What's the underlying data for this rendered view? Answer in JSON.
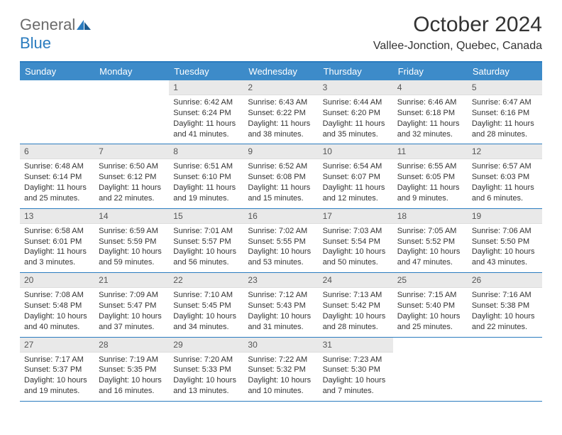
{
  "logo": {
    "text1": "General",
    "text2": "Blue",
    "color1": "#6b6b6b",
    "color2": "#2b7cbf"
  },
  "title": "October 2024",
  "location": "Vallee-Jonction, Quebec, Canada",
  "header_bg": "#3d8bc9",
  "header_rule": "#2b7cbf",
  "daynum_bg": "#e9e9e9",
  "text_color": "#333333",
  "font_size_detail": 11,
  "day_headers": [
    "Sunday",
    "Monday",
    "Tuesday",
    "Wednesday",
    "Thursday",
    "Friday",
    "Saturday"
  ],
  "weeks": [
    [
      null,
      null,
      {
        "n": "1",
        "sr": "Sunrise: 6:42 AM",
        "ss": "Sunset: 6:24 PM",
        "dl": "Daylight: 11 hours and 41 minutes."
      },
      {
        "n": "2",
        "sr": "Sunrise: 6:43 AM",
        "ss": "Sunset: 6:22 PM",
        "dl": "Daylight: 11 hours and 38 minutes."
      },
      {
        "n": "3",
        "sr": "Sunrise: 6:44 AM",
        "ss": "Sunset: 6:20 PM",
        "dl": "Daylight: 11 hours and 35 minutes."
      },
      {
        "n": "4",
        "sr": "Sunrise: 6:46 AM",
        "ss": "Sunset: 6:18 PM",
        "dl": "Daylight: 11 hours and 32 minutes."
      },
      {
        "n": "5",
        "sr": "Sunrise: 6:47 AM",
        "ss": "Sunset: 6:16 PM",
        "dl": "Daylight: 11 hours and 28 minutes."
      }
    ],
    [
      {
        "n": "6",
        "sr": "Sunrise: 6:48 AM",
        "ss": "Sunset: 6:14 PM",
        "dl": "Daylight: 11 hours and 25 minutes."
      },
      {
        "n": "7",
        "sr": "Sunrise: 6:50 AM",
        "ss": "Sunset: 6:12 PM",
        "dl": "Daylight: 11 hours and 22 minutes."
      },
      {
        "n": "8",
        "sr": "Sunrise: 6:51 AM",
        "ss": "Sunset: 6:10 PM",
        "dl": "Daylight: 11 hours and 19 minutes."
      },
      {
        "n": "9",
        "sr": "Sunrise: 6:52 AM",
        "ss": "Sunset: 6:08 PM",
        "dl": "Daylight: 11 hours and 15 minutes."
      },
      {
        "n": "10",
        "sr": "Sunrise: 6:54 AM",
        "ss": "Sunset: 6:07 PM",
        "dl": "Daylight: 11 hours and 12 minutes."
      },
      {
        "n": "11",
        "sr": "Sunrise: 6:55 AM",
        "ss": "Sunset: 6:05 PM",
        "dl": "Daylight: 11 hours and 9 minutes."
      },
      {
        "n": "12",
        "sr": "Sunrise: 6:57 AM",
        "ss": "Sunset: 6:03 PM",
        "dl": "Daylight: 11 hours and 6 minutes."
      }
    ],
    [
      {
        "n": "13",
        "sr": "Sunrise: 6:58 AM",
        "ss": "Sunset: 6:01 PM",
        "dl": "Daylight: 11 hours and 3 minutes."
      },
      {
        "n": "14",
        "sr": "Sunrise: 6:59 AM",
        "ss": "Sunset: 5:59 PM",
        "dl": "Daylight: 10 hours and 59 minutes."
      },
      {
        "n": "15",
        "sr": "Sunrise: 7:01 AM",
        "ss": "Sunset: 5:57 PM",
        "dl": "Daylight: 10 hours and 56 minutes."
      },
      {
        "n": "16",
        "sr": "Sunrise: 7:02 AM",
        "ss": "Sunset: 5:55 PM",
        "dl": "Daylight: 10 hours and 53 minutes."
      },
      {
        "n": "17",
        "sr": "Sunrise: 7:03 AM",
        "ss": "Sunset: 5:54 PM",
        "dl": "Daylight: 10 hours and 50 minutes."
      },
      {
        "n": "18",
        "sr": "Sunrise: 7:05 AM",
        "ss": "Sunset: 5:52 PM",
        "dl": "Daylight: 10 hours and 47 minutes."
      },
      {
        "n": "19",
        "sr": "Sunrise: 7:06 AM",
        "ss": "Sunset: 5:50 PM",
        "dl": "Daylight: 10 hours and 43 minutes."
      }
    ],
    [
      {
        "n": "20",
        "sr": "Sunrise: 7:08 AM",
        "ss": "Sunset: 5:48 PM",
        "dl": "Daylight: 10 hours and 40 minutes."
      },
      {
        "n": "21",
        "sr": "Sunrise: 7:09 AM",
        "ss": "Sunset: 5:47 PM",
        "dl": "Daylight: 10 hours and 37 minutes."
      },
      {
        "n": "22",
        "sr": "Sunrise: 7:10 AM",
        "ss": "Sunset: 5:45 PM",
        "dl": "Daylight: 10 hours and 34 minutes."
      },
      {
        "n": "23",
        "sr": "Sunrise: 7:12 AM",
        "ss": "Sunset: 5:43 PM",
        "dl": "Daylight: 10 hours and 31 minutes."
      },
      {
        "n": "24",
        "sr": "Sunrise: 7:13 AM",
        "ss": "Sunset: 5:42 PM",
        "dl": "Daylight: 10 hours and 28 minutes."
      },
      {
        "n": "25",
        "sr": "Sunrise: 7:15 AM",
        "ss": "Sunset: 5:40 PM",
        "dl": "Daylight: 10 hours and 25 minutes."
      },
      {
        "n": "26",
        "sr": "Sunrise: 7:16 AM",
        "ss": "Sunset: 5:38 PM",
        "dl": "Daylight: 10 hours and 22 minutes."
      }
    ],
    [
      {
        "n": "27",
        "sr": "Sunrise: 7:17 AM",
        "ss": "Sunset: 5:37 PM",
        "dl": "Daylight: 10 hours and 19 minutes."
      },
      {
        "n": "28",
        "sr": "Sunrise: 7:19 AM",
        "ss": "Sunset: 5:35 PM",
        "dl": "Daylight: 10 hours and 16 minutes."
      },
      {
        "n": "29",
        "sr": "Sunrise: 7:20 AM",
        "ss": "Sunset: 5:33 PM",
        "dl": "Daylight: 10 hours and 13 minutes."
      },
      {
        "n": "30",
        "sr": "Sunrise: 7:22 AM",
        "ss": "Sunset: 5:32 PM",
        "dl": "Daylight: 10 hours and 10 minutes."
      },
      {
        "n": "31",
        "sr": "Sunrise: 7:23 AM",
        "ss": "Sunset: 5:30 PM",
        "dl": "Daylight: 10 hours and 7 minutes."
      },
      null,
      null
    ]
  ]
}
